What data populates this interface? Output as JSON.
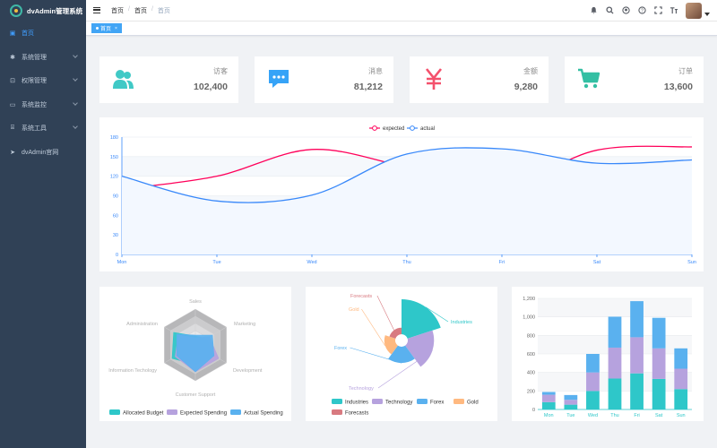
{
  "app": {
    "title": "dvAdmin管理系统"
  },
  "sidebar": {
    "items": [
      {
        "label": "首页",
        "icon": "dashboard-icon",
        "active": true
      },
      {
        "label": "系统管理",
        "icon": "gear-icon"
      },
      {
        "label": "权限管理",
        "icon": "lock-icon"
      },
      {
        "label": "系统监控",
        "icon": "monitor-icon"
      },
      {
        "label": "系统工具",
        "icon": "toolbox-icon"
      },
      {
        "label": "dvAdmin官网",
        "icon": "send-icon"
      }
    ]
  },
  "breadcrumb": [
    "首页",
    "首页",
    "首页"
  ],
  "tags": [
    {
      "label": "首页",
      "active": true
    }
  ],
  "stats": [
    {
      "label": "访客",
      "value": "102,400",
      "icon": "people-icon",
      "color": "#40c9c6"
    },
    {
      "label": "消息",
      "value": "81,212",
      "icon": "message-icon",
      "color": "#36a3f7"
    },
    {
      "label": "金额",
      "value": "9,280",
      "icon": "money-icon",
      "color": "#f4516c"
    },
    {
      "label": "订单",
      "value": "13,600",
      "icon": "shopping-cart-icon",
      "color": "#34bfa3"
    }
  ],
  "chart_data": [
    {
      "type": "line",
      "categories": [
        "Mon",
        "Tue",
        "Wed",
        "Thu",
        "Fri",
        "Sat",
        "Sun"
      ],
      "series": [
        {
          "name": "expected",
          "values": [
            100,
            120,
            161,
            134,
            105,
            160,
            165
          ],
          "color": "#ff005a"
        },
        {
          "name": "actual",
          "values": [
            120,
            82,
            91,
            154,
            162,
            140,
            145
          ],
          "color": "#3888fa"
        }
      ],
      "yticks": [
        0,
        30,
        60,
        90,
        120,
        150,
        180
      ],
      "ylim": [
        0,
        180
      ],
      "legend": "top-center"
    },
    {
      "type": "radar",
      "indicators": [
        "Sales",
        "Marketing",
        "Development",
        "Customer Support",
        "Information Techology",
        "Administration"
      ],
      "series": [
        {
          "name": "Allocated Budget",
          "values": [
            5000,
            7000,
            12000,
            11000,
            15000,
            14000
          ],
          "color": "#2ec7c9"
        },
        {
          "name": "Expected Spending",
          "values": [
            4000,
            9000,
            15000,
            15000,
            13000,
            11000
          ],
          "color": "#b6a2de"
        },
        {
          "name": "Actual Spending",
          "values": [
            5500,
            11000,
            12000,
            15000,
            12000,
            12000
          ],
          "color": "#5ab1ef"
        }
      ],
      "max": 20000,
      "legend": "bottom"
    },
    {
      "type": "pie",
      "variant": "rose",
      "slices": [
        {
          "name": "Industries",
          "value": 320,
          "color": "#2ec7c9"
        },
        {
          "name": "Technology",
          "value": 240,
          "color": "#b6a2de"
        },
        {
          "name": "Forex",
          "value": 149,
          "color": "#5ab1ef"
        },
        {
          "name": "Gold",
          "value": 100,
          "color": "#ffb980"
        },
        {
          "name": "Forecasts",
          "value": 59,
          "color": "#d87a80"
        }
      ],
      "legend": "bottom"
    },
    {
      "type": "bar",
      "stacked": true,
      "categories": [
        "Mon",
        "Tue",
        "Wed",
        "Thu",
        "Fri",
        "Sat",
        "Sun"
      ],
      "yticks": [
        "0",
        "200",
        "400",
        "600",
        "800",
        "1,000",
        "1,200"
      ],
      "ylim": [
        0,
        1200
      ],
      "series": [
        {
          "values": [
            79,
            52,
            200,
            334,
            390,
            330,
            220
          ],
          "color": "#2ec7c9"
        },
        {
          "values": [
            80,
            52,
            200,
            334,
            390,
            330,
            220
          ],
          "color": "#b6a2de"
        },
        {
          "values": [
            30,
            52,
            200,
            334,
            390,
            330,
            220
          ],
          "color": "#5ab1ef"
        }
      ]
    }
  ]
}
